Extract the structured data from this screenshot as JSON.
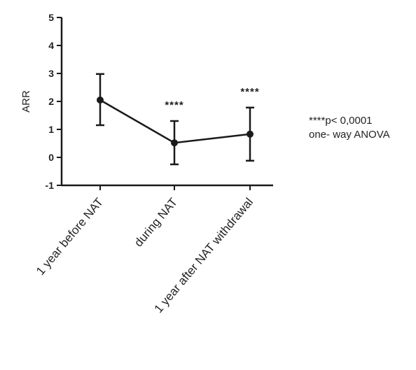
{
  "chart_data": {
    "type": "line",
    "ylabel": "ARR",
    "xlabel": "",
    "ylim": [
      -1,
      5
    ],
    "yticks": [
      -1,
      0,
      1,
      2,
      3,
      4,
      5
    ],
    "grid": false,
    "categories": [
      "1 year before NAT",
      "during NAT",
      "1 year  after NAT withdrawal"
    ],
    "series": [
      {
        "values": [
          2.05,
          0.52,
          0.83
        ],
        "error_low": [
          1.15,
          -0.25,
          -0.12
        ],
        "error_high": [
          2.98,
          1.3,
          1.78
        ]
      }
    ],
    "significance": [
      "",
      "****",
      "****"
    ],
    "annotation": [
      "****p< 0,0001",
      "one- way ANOVA"
    ],
    "line_color": "#1a1a1a"
  }
}
